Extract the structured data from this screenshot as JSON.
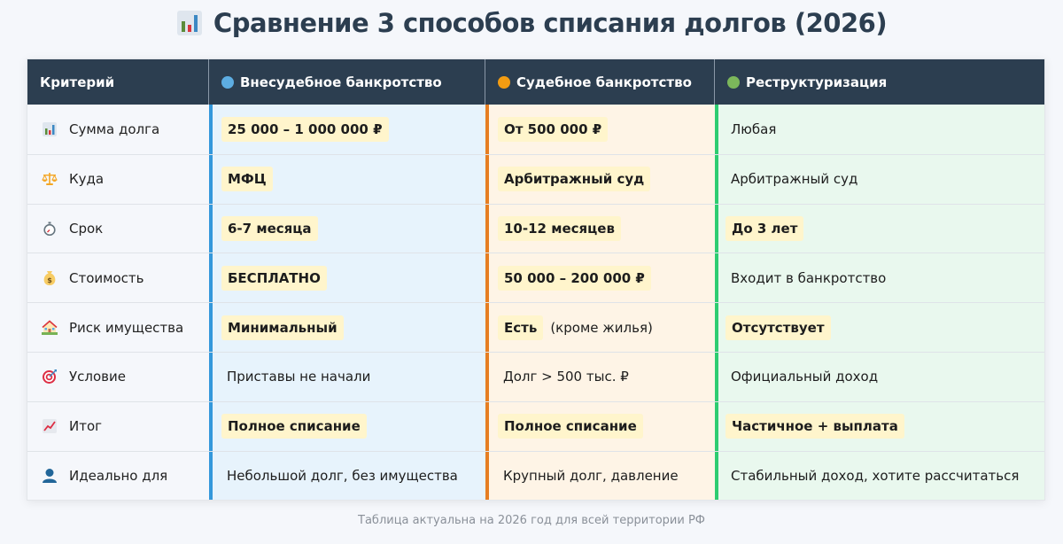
{
  "title": {
    "icon": "bar-chart-icon",
    "text": "Сравнение 3 способов списания долгов (2026)"
  },
  "colors": {
    "header_bg": "#2c3e50",
    "method1": "#3498db",
    "method1_dot": "#5dade2",
    "method2": "#e67e22",
    "method2_dot": "#f39c12",
    "method3": "#2ecc71",
    "method3_dot": "#7cb75b",
    "highlight_bg": "#fff5cc"
  },
  "table": {
    "headers": {
      "criterion": "Критерий",
      "method1": "Внесудебное банкротство",
      "method2": "Судебное банкротство",
      "method3": "Реструктуризация"
    },
    "rows": [
      {
        "icon": "bar-chart-icon",
        "criterion": "Сумма долга",
        "m1": {
          "text": "25 000 – 1 000 000 ₽",
          "highlight": true
        },
        "m2": {
          "text": "От 500 000 ₽",
          "highlight": true
        },
        "m3": {
          "text": "Любая",
          "highlight": false
        }
      },
      {
        "icon": "scales-icon",
        "criterion": "Куда",
        "m1": {
          "text": "МФЦ",
          "highlight": true
        },
        "m2": {
          "text": "Арбитражный суд",
          "highlight": true
        },
        "m3": {
          "text": "Арбитражный суд",
          "highlight": false
        }
      },
      {
        "icon": "stopwatch-icon",
        "criterion": "Срок",
        "m1": {
          "text": "6-7 месяца",
          "highlight": true
        },
        "m2": {
          "text": "10-12 месяцев",
          "highlight": true
        },
        "m3": {
          "text": "До 3 лет",
          "highlight": true
        }
      },
      {
        "icon": "money-bag-icon",
        "criterion": "Стоимость",
        "m1": {
          "text": "БЕСПЛАТНО",
          "highlight": true
        },
        "m2": {
          "text": "50 000 – 200 000 ₽",
          "highlight": true
        },
        "m3": {
          "text": "Входит в банкротство",
          "highlight": false
        }
      },
      {
        "icon": "house-icon",
        "criterion": "Риск имущества",
        "m1": {
          "text": "Минимальный",
          "highlight": true
        },
        "m2": {
          "text": "Есть",
          "highlight": true,
          "note": "(кроме жилья)"
        },
        "m3": {
          "text": "Отсутствует",
          "highlight": true
        }
      },
      {
        "icon": "target-icon",
        "criterion": "Условие",
        "m1": {
          "text": "Приставы не начали",
          "highlight": false
        },
        "m2": {
          "text": "Долг > 500 тыс. ₽",
          "highlight": false
        },
        "m3": {
          "text": "Официальный доход",
          "highlight": false
        }
      },
      {
        "icon": "trend-chart-icon",
        "criterion": "Итог",
        "m1": {
          "text": "Полное списание",
          "highlight": true
        },
        "m2": {
          "text": "Полное списание",
          "highlight": true
        },
        "m3": {
          "text": "Частичное + выплата",
          "highlight": true
        }
      },
      {
        "icon": "person-icon",
        "criterion": "Идеально для",
        "m1": {
          "text": "Небольшой долг, без имущества",
          "highlight": false
        },
        "m2": {
          "text": "Крупный долг, давление",
          "highlight": false
        },
        "m3": {
          "text": "Стабильный доход, хотите рассчитаться",
          "highlight": false
        }
      }
    ]
  },
  "footer": "Таблица актуальна на 2026 год для всей территории РФ"
}
